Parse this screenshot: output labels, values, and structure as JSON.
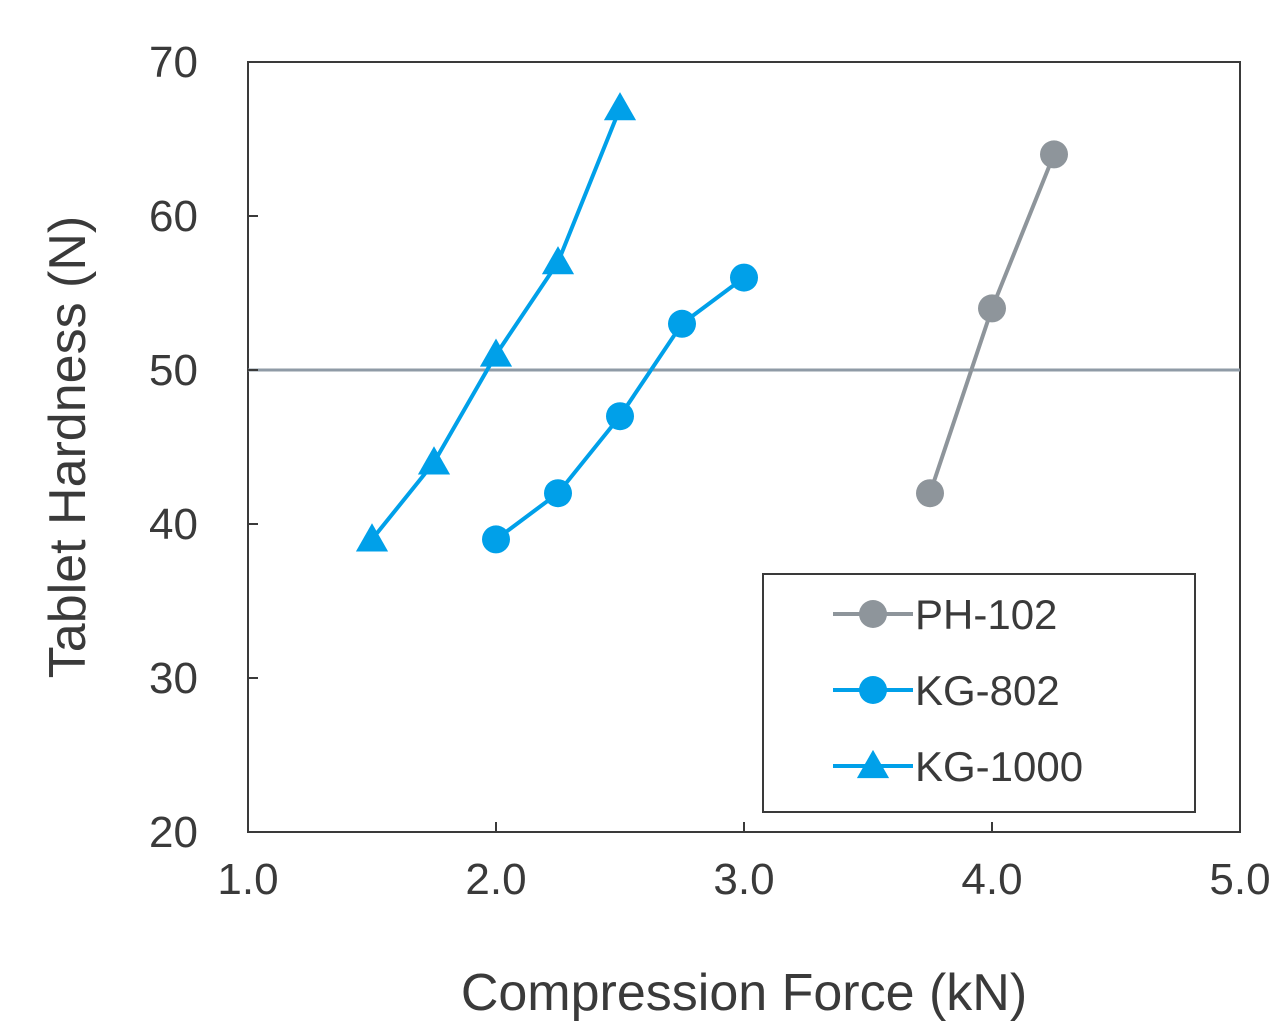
{
  "chart_data": {
    "type": "line",
    "xlabel": "Compression Force (kN)",
    "ylabel": "Tablet Hardness (N)",
    "xlim": [
      1.0,
      5.0
    ],
    "ylim": [
      20,
      70
    ],
    "x_ticks": [
      "1.0",
      "2.0",
      "3.0",
      "4.0",
      "5.0"
    ],
    "x_tick_values": [
      1.0,
      2.0,
      3.0,
      4.0,
      5.0
    ],
    "y_ticks": [
      "20",
      "30",
      "40",
      "50",
      "60",
      "70"
    ],
    "y_tick_values": [
      20,
      30,
      40,
      50,
      60,
      70
    ],
    "grid": false,
    "reference_line": {
      "y": 50,
      "color": "#8f9ba6"
    },
    "legend_position": "bottom-right",
    "series": [
      {
        "name": "PH-102",
        "color": "#8e959b",
        "marker": "circle",
        "x": [
          3.75,
          4.0,
          4.25
        ],
        "y": [
          42,
          54,
          64
        ]
      },
      {
        "name": "KG-802",
        "color": "#00a0e9",
        "marker": "circle",
        "x": [
          2.0,
          2.25,
          2.5,
          2.75,
          3.0
        ],
        "y": [
          39,
          42,
          47,
          53,
          56
        ]
      },
      {
        "name": "KG-1000",
        "color": "#00a0e9",
        "marker": "triangle",
        "x": [
          1.5,
          1.75,
          2.0,
          2.25,
          2.5
        ],
        "y": [
          39,
          44,
          51,
          57,
          67
        ]
      }
    ]
  }
}
